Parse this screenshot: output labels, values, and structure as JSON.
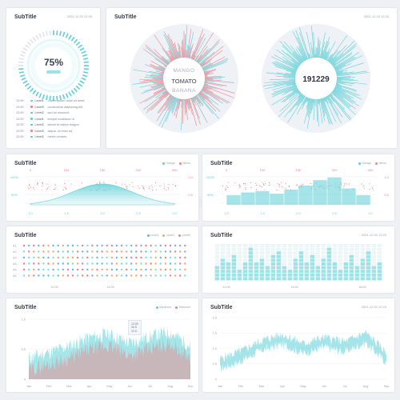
{
  "colors": {
    "teal": "#5ccfd6",
    "red": "#f07f86",
    "grey": "#9aa3b0",
    "blue": "#6ab3e6",
    "orange": "#f7a86b",
    "mint": "#7fe0d2"
  },
  "cards": {
    "gauge": {
      "title": "SubTitle",
      "date": "2001.12.20 12:20",
      "percent": "75%",
      "progress": 0.75,
      "log": [
        {
          "time": "12:00",
          "level": "Level1",
          "color": "#5ccfd6",
          "text": "Lorem ipsum dolor sit amet,"
        },
        {
          "time": "12:00",
          "level": "Level3",
          "color": "#f07f86",
          "text": "consectetur adipiscing elit,"
        },
        {
          "time": "12:00",
          "level": "Level2",
          "color": "#6ab3e6",
          "text": "sed do eiusmod"
        },
        {
          "time": "12:00",
          "level": "Level1",
          "color": "#5ccfd6",
          "text": "tempor incididunt ut"
        },
        {
          "time": "12:00",
          "level": "Level2",
          "color": "#6ab3e6",
          "text": "labore et dolore magna"
        },
        {
          "time": "12:00",
          "level": "Level3",
          "color": "#f07f86",
          "text": "aliqua. Ut enim ad"
        },
        {
          "time": "12:00",
          "level": "Level2",
          "color": "#6ab3e6",
          "text": "minim veniam,"
        }
      ]
    },
    "radial": {
      "title": "SubTitle",
      "date": "2001.12.20 12:20",
      "words": [
        "MANGO",
        "TOMATO",
        "BANANA"
      ],
      "value": "191229"
    },
    "bell": {
      "title": "SubTitle",
      "legend": [
        "Orange",
        "Melon"
      ],
      "top_ticks": [
        "0",
        "100",
        "150",
        "200",
        "300"
      ],
      "bottom_ticks": [
        "1.0",
        "1.5",
        "2.0",
        "2.5",
        "3.0"
      ],
      "left_ticks": [
        "50%",
        "100%"
      ],
      "right_ticks": [
        "0.5",
        "1.0"
      ]
    },
    "histogram": {
      "title": "SubTitle",
      "legend": [
        "Orange",
        "Melon"
      ],
      "top_ticks": [
        "0",
        "100",
        "150",
        "200",
        "300"
      ],
      "bottom_ticks": [
        "1.0",
        "1.5",
        "2.0",
        "2.5",
        "3.0"
      ],
      "left_ticks": [
        "50%",
        "100%"
      ],
      "right_ticks": [
        "0.5",
        "1.0"
      ]
    },
    "dots": {
      "title": "SubTitle",
      "legend": [
        "Level1",
        "Level2",
        "Level3"
      ],
      "rows": [
        "A1",
        "A2",
        "A3",
        "A4",
        "A5",
        "A6"
      ],
      "xticks": [
        "12:00",
        "14:00"
      ]
    },
    "bars": {
      "title": "SubTitle",
      "date": "2001.12.20 12:20",
      "xticks": [
        "12:00",
        "14:00",
        "16:00"
      ]
    },
    "area1": {
      "title": "SubTitle",
      "legend": [
        "Maximum",
        "Minimum"
      ],
      "tooltip": [
        "12:00",
        "34.5",
        "12.0"
      ],
      "months": [
        "Jan",
        "Feb",
        "Mar",
        "Apr",
        "May",
        "Jun",
        "Jul",
        "Aug",
        "Sep"
      ],
      "yticks": [
        "1.0",
        "0.5",
        "0"
      ]
    },
    "area2": {
      "title": "SubTitle",
      "date": "2001.12.20 12:20",
      "months": [
        "Jan",
        "Feb",
        "Mar",
        "Apr",
        "May",
        "Jun",
        "Jul",
        "Aug",
        "Sep"
      ],
      "yticks": [
        "2.0",
        "1.5",
        "1.0",
        "0.5",
        "0"
      ]
    }
  },
  "chart_data": [
    {
      "type": "line",
      "name": "bell",
      "x": [
        1.0,
        1.5,
        2.0,
        2.5,
        3.0
      ],
      "y": [
        0.02,
        0.3,
        1.0,
        0.3,
        0.02
      ]
    },
    {
      "type": "bar",
      "name": "histogram",
      "categories": [
        "1",
        "2",
        "3",
        "4",
        "5",
        "6",
        "7",
        "8",
        "9",
        "10"
      ],
      "values": [
        0.35,
        0.45,
        0.5,
        0.4,
        0.55,
        0.7,
        0.9,
        1.0,
        0.6,
        0.35
      ]
    },
    {
      "type": "bar",
      "name": "levels",
      "categories": [
        "1",
        "2",
        "3",
        "4",
        "5",
        "6",
        "7",
        "8",
        "9",
        "10",
        "11",
        "12",
        "13",
        "14",
        "15",
        "16",
        "17",
        "18",
        "19",
        "20",
        "21",
        "22",
        "23",
        "24",
        "25",
        "26",
        "27",
        "28",
        "29",
        "30"
      ],
      "values": [
        0.4,
        0.6,
        0.5,
        0.75,
        0.35,
        0.55,
        0.9,
        0.5,
        0.65,
        0.45,
        0.7,
        0.85,
        0.4,
        0.3,
        0.6,
        0.8,
        0.5,
        0.7,
        0.45,
        0.6,
        0.9,
        0.55,
        0.35,
        0.5,
        0.7,
        0.4,
        0.6,
        0.8,
        0.45,
        0.5
      ]
    },
    {
      "type": "area",
      "name": "maximum-minimum",
      "x": [
        "Jan",
        "Feb",
        "Mar",
        "Apr",
        "May",
        "Jun",
        "Jul",
        "Aug",
        "Sep"
      ],
      "series": [
        {
          "name": "Maximum",
          "values": [
            0.35,
            0.45,
            0.55,
            0.7,
            0.75,
            0.6,
            0.72,
            0.78,
            0.55
          ]
        },
        {
          "name": "Minimum",
          "values": [
            0.15,
            0.25,
            0.35,
            0.5,
            0.55,
            0.4,
            0.5,
            0.6,
            0.35
          ]
        }
      ]
    },
    {
      "type": "area",
      "name": "band",
      "x": [
        "Jan",
        "Feb",
        "Mar",
        "Apr",
        "May",
        "Jun",
        "Jul",
        "Aug",
        "Sep"
      ],
      "series": [
        {
          "values": [
            0.5,
            0.75,
            1.1,
            1.3,
            1.0,
            1.2,
            1.05,
            1.35,
            0.7
          ]
        }
      ]
    }
  ]
}
